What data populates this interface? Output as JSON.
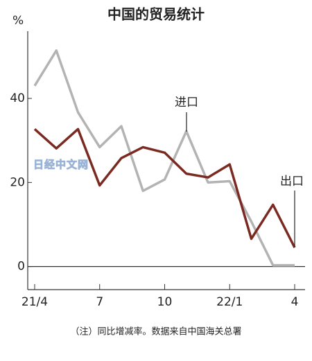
{
  "chart_data": {
    "type": "line",
    "title": "中国的贸易统计",
    "y_label": "%",
    "categories": [
      "21/4",
      null,
      null,
      "7",
      null,
      null,
      "10",
      null,
      null,
      "22/1",
      null,
      null,
      "4"
    ],
    "series": [
      {
        "name": "进口",
        "color": "#b3b3b3",
        "values": [
          43,
          51.4,
          36.7,
          28.4,
          33.4,
          18,
          20.7,
          32.2,
          20,
          20.3,
          10.7,
          0.3,
          0.3
        ]
      },
      {
        "name": "出口",
        "color": "#7b2a22",
        "values": [
          32.7,
          28.1,
          32.7,
          19.3,
          25.8,
          28.4,
          27.1,
          22.1,
          21.2,
          24.3,
          6.6,
          14.7,
          4.5
        ]
      }
    ],
    "ylim": [
      -5.5,
      56
    ],
    "yticks": [
      0,
      20,
      40
    ],
    "watermark": "日经中文网",
    "note": "（注）同比增减率。数据来自中国海关总署"
  }
}
